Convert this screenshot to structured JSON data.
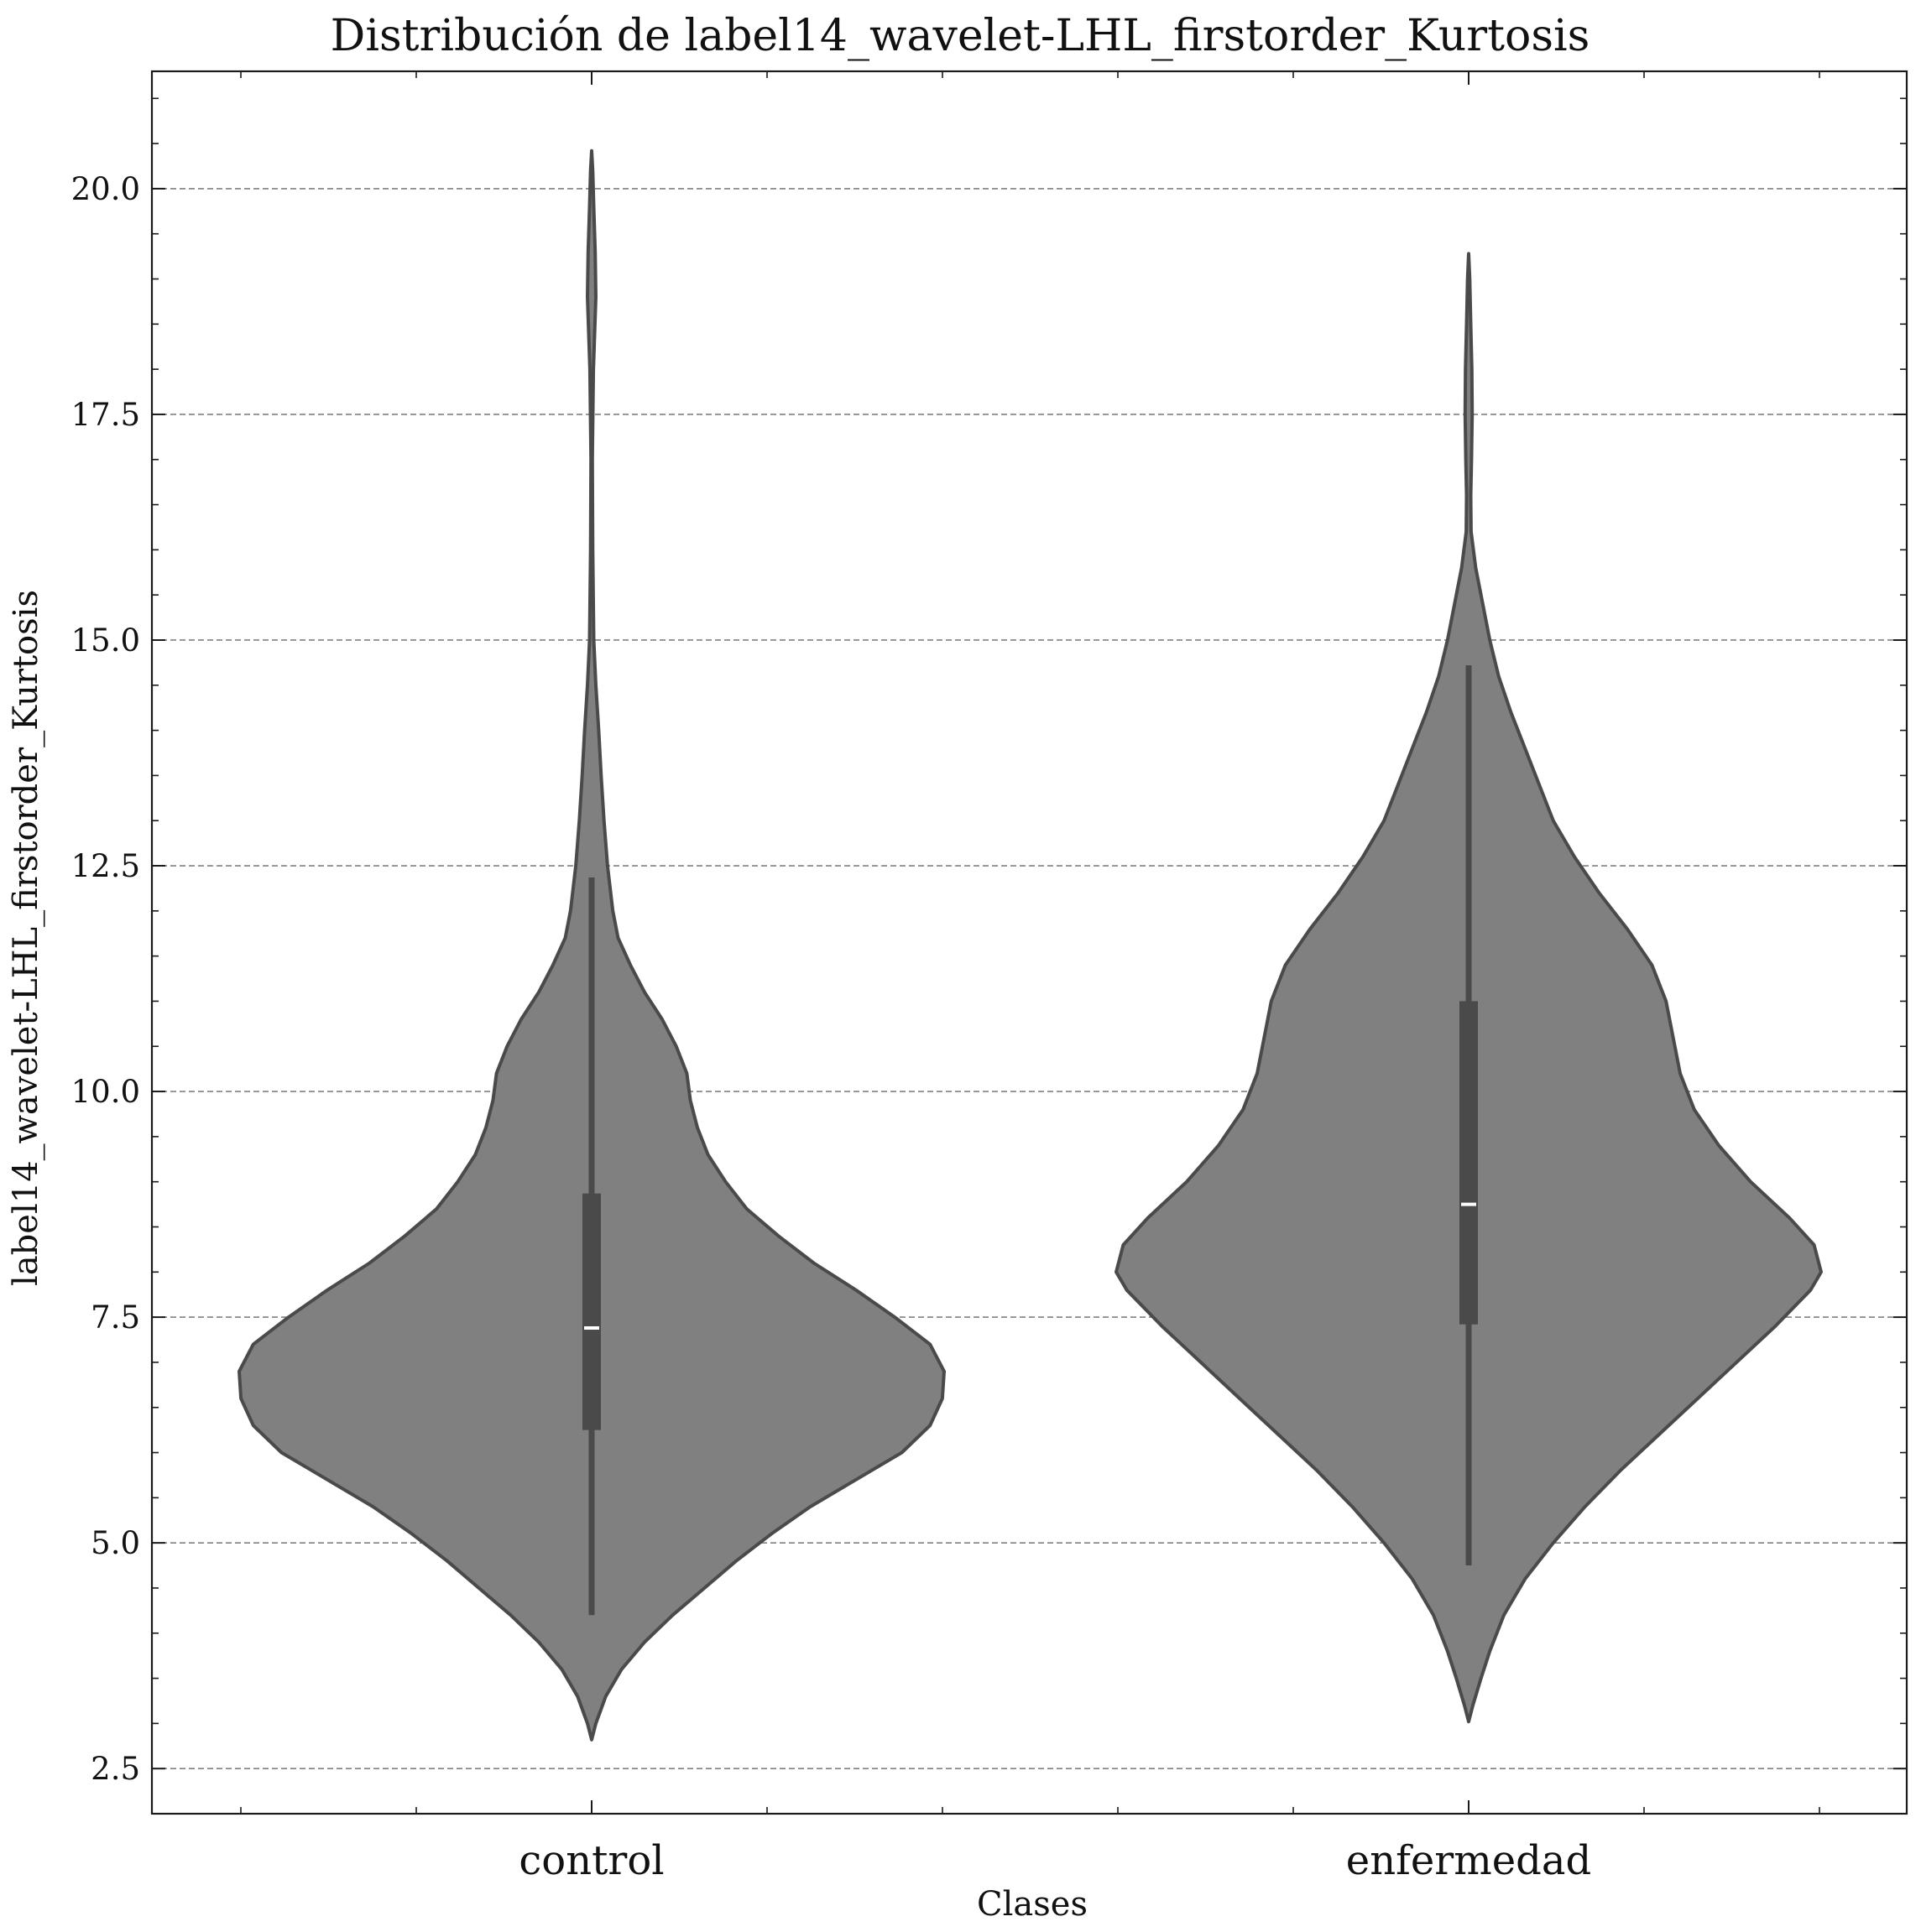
{
  "chart_data": {
    "type": "violin",
    "title": "Distribución de label14_wavelet-LHL_firstorder_Kurtosis",
    "xlabel": "Clases",
    "ylabel": "label14_wavelet-LHL_firstorder_Kurtosis",
    "categories": [
      "control",
      "enfermedad"
    ],
    "ylim": [
      2.0,
      21.3
    ],
    "yticks": [
      2.5,
      5.0,
      7.5,
      10.0,
      12.5,
      15.0,
      17.5,
      20.0
    ],
    "ytick_labels": [
      "2.5",
      "5.0",
      "7.5",
      "10.0",
      "12.5",
      "15.0",
      "17.5",
      "20.0"
    ],
    "grid": "horizontal-dashed",
    "colors": {
      "violin_fill": "#808080",
      "violin_edge": "#4a4a4a",
      "box": "#4a4a4a",
      "median": "#ffffff",
      "grid": "#808080"
    },
    "violins": [
      {
        "category": "control",
        "min": 4.2,
        "q1": 6.25,
        "median": 7.38,
        "q3": 8.87,
        "max": 12.37,
        "density_range": [
          2.82,
          20.42
        ],
        "density": [
          [
            2.82,
            0.0
          ],
          [
            3.0,
            0.012
          ],
          [
            3.3,
            0.04
          ],
          [
            3.6,
            0.085
          ],
          [
            3.9,
            0.15
          ],
          [
            4.2,
            0.23
          ],
          [
            4.5,
            0.32
          ],
          [
            4.8,
            0.41
          ],
          [
            5.1,
            0.51
          ],
          [
            5.4,
            0.62
          ],
          [
            5.7,
            0.75
          ],
          [
            6.0,
            0.88
          ],
          [
            6.3,
            0.96
          ],
          [
            6.6,
            0.995
          ],
          [
            6.9,
            1.0
          ],
          [
            7.2,
            0.96
          ],
          [
            7.5,
            0.86
          ],
          [
            7.8,
            0.75
          ],
          [
            8.1,
            0.63
          ],
          [
            8.4,
            0.53
          ],
          [
            8.7,
            0.44
          ],
          [
            9.0,
            0.38
          ],
          [
            9.3,
            0.33
          ],
          [
            9.6,
            0.3
          ],
          [
            9.9,
            0.28
          ],
          [
            10.2,
            0.27
          ],
          [
            10.5,
            0.24
          ],
          [
            10.8,
            0.2
          ],
          [
            11.1,
            0.15
          ],
          [
            11.4,
            0.11
          ],
          [
            11.7,
            0.075
          ],
          [
            12.0,
            0.06
          ],
          [
            12.5,
            0.045
          ],
          [
            13.0,
            0.035
          ],
          [
            13.5,
            0.027
          ],
          [
            14.0,
            0.02
          ],
          [
            14.5,
            0.012
          ],
          [
            15.0,
            0.006
          ],
          [
            16.0,
            0.003
          ],
          [
            17.0,
            0.002
          ],
          [
            18.0,
            0.005
          ],
          [
            18.8,
            0.012
          ],
          [
            19.3,
            0.01
          ],
          [
            19.8,
            0.006
          ],
          [
            20.2,
            0.003
          ],
          [
            20.42,
            0.0
          ]
        ]
      },
      {
        "category": "enfermedad",
        "min": 4.75,
        "q1": 7.42,
        "median": 8.75,
        "q3": 11.0,
        "max": 14.72,
        "density_range": [
          3.02,
          19.28
        ],
        "density": [
          [
            3.02,
            0.0
          ],
          [
            3.2,
            0.012
          ],
          [
            3.5,
            0.035
          ],
          [
            3.8,
            0.06
          ],
          [
            4.2,
            0.1
          ],
          [
            4.6,
            0.16
          ],
          [
            5.0,
            0.24
          ],
          [
            5.4,
            0.33
          ],
          [
            5.8,
            0.43
          ],
          [
            6.2,
            0.54
          ],
          [
            6.6,
            0.65
          ],
          [
            7.0,
            0.76
          ],
          [
            7.4,
            0.87
          ],
          [
            7.8,
            0.97
          ],
          [
            8.0,
            1.0
          ],
          [
            8.3,
            0.98
          ],
          [
            8.6,
            0.91
          ],
          [
            9.0,
            0.8
          ],
          [
            9.4,
            0.71
          ],
          [
            9.8,
            0.64
          ],
          [
            10.2,
            0.6
          ],
          [
            10.6,
            0.58
          ],
          [
            11.0,
            0.56
          ],
          [
            11.4,
            0.52
          ],
          [
            11.8,
            0.45
          ],
          [
            12.2,
            0.37
          ],
          [
            12.6,
            0.3
          ],
          [
            13.0,
            0.24
          ],
          [
            13.4,
            0.2
          ],
          [
            13.8,
            0.16
          ],
          [
            14.2,
            0.12
          ],
          [
            14.6,
            0.085
          ],
          [
            15.0,
            0.06
          ],
          [
            15.4,
            0.04
          ],
          [
            15.8,
            0.02
          ],
          [
            16.2,
            0.007
          ],
          [
            16.6,
            0.006
          ],
          [
            17.0,
            0.008
          ],
          [
            17.5,
            0.01
          ],
          [
            18.0,
            0.009
          ],
          [
            18.5,
            0.006
          ],
          [
            19.0,
            0.003
          ],
          [
            19.28,
            0.0
          ]
        ]
      }
    ]
  }
}
